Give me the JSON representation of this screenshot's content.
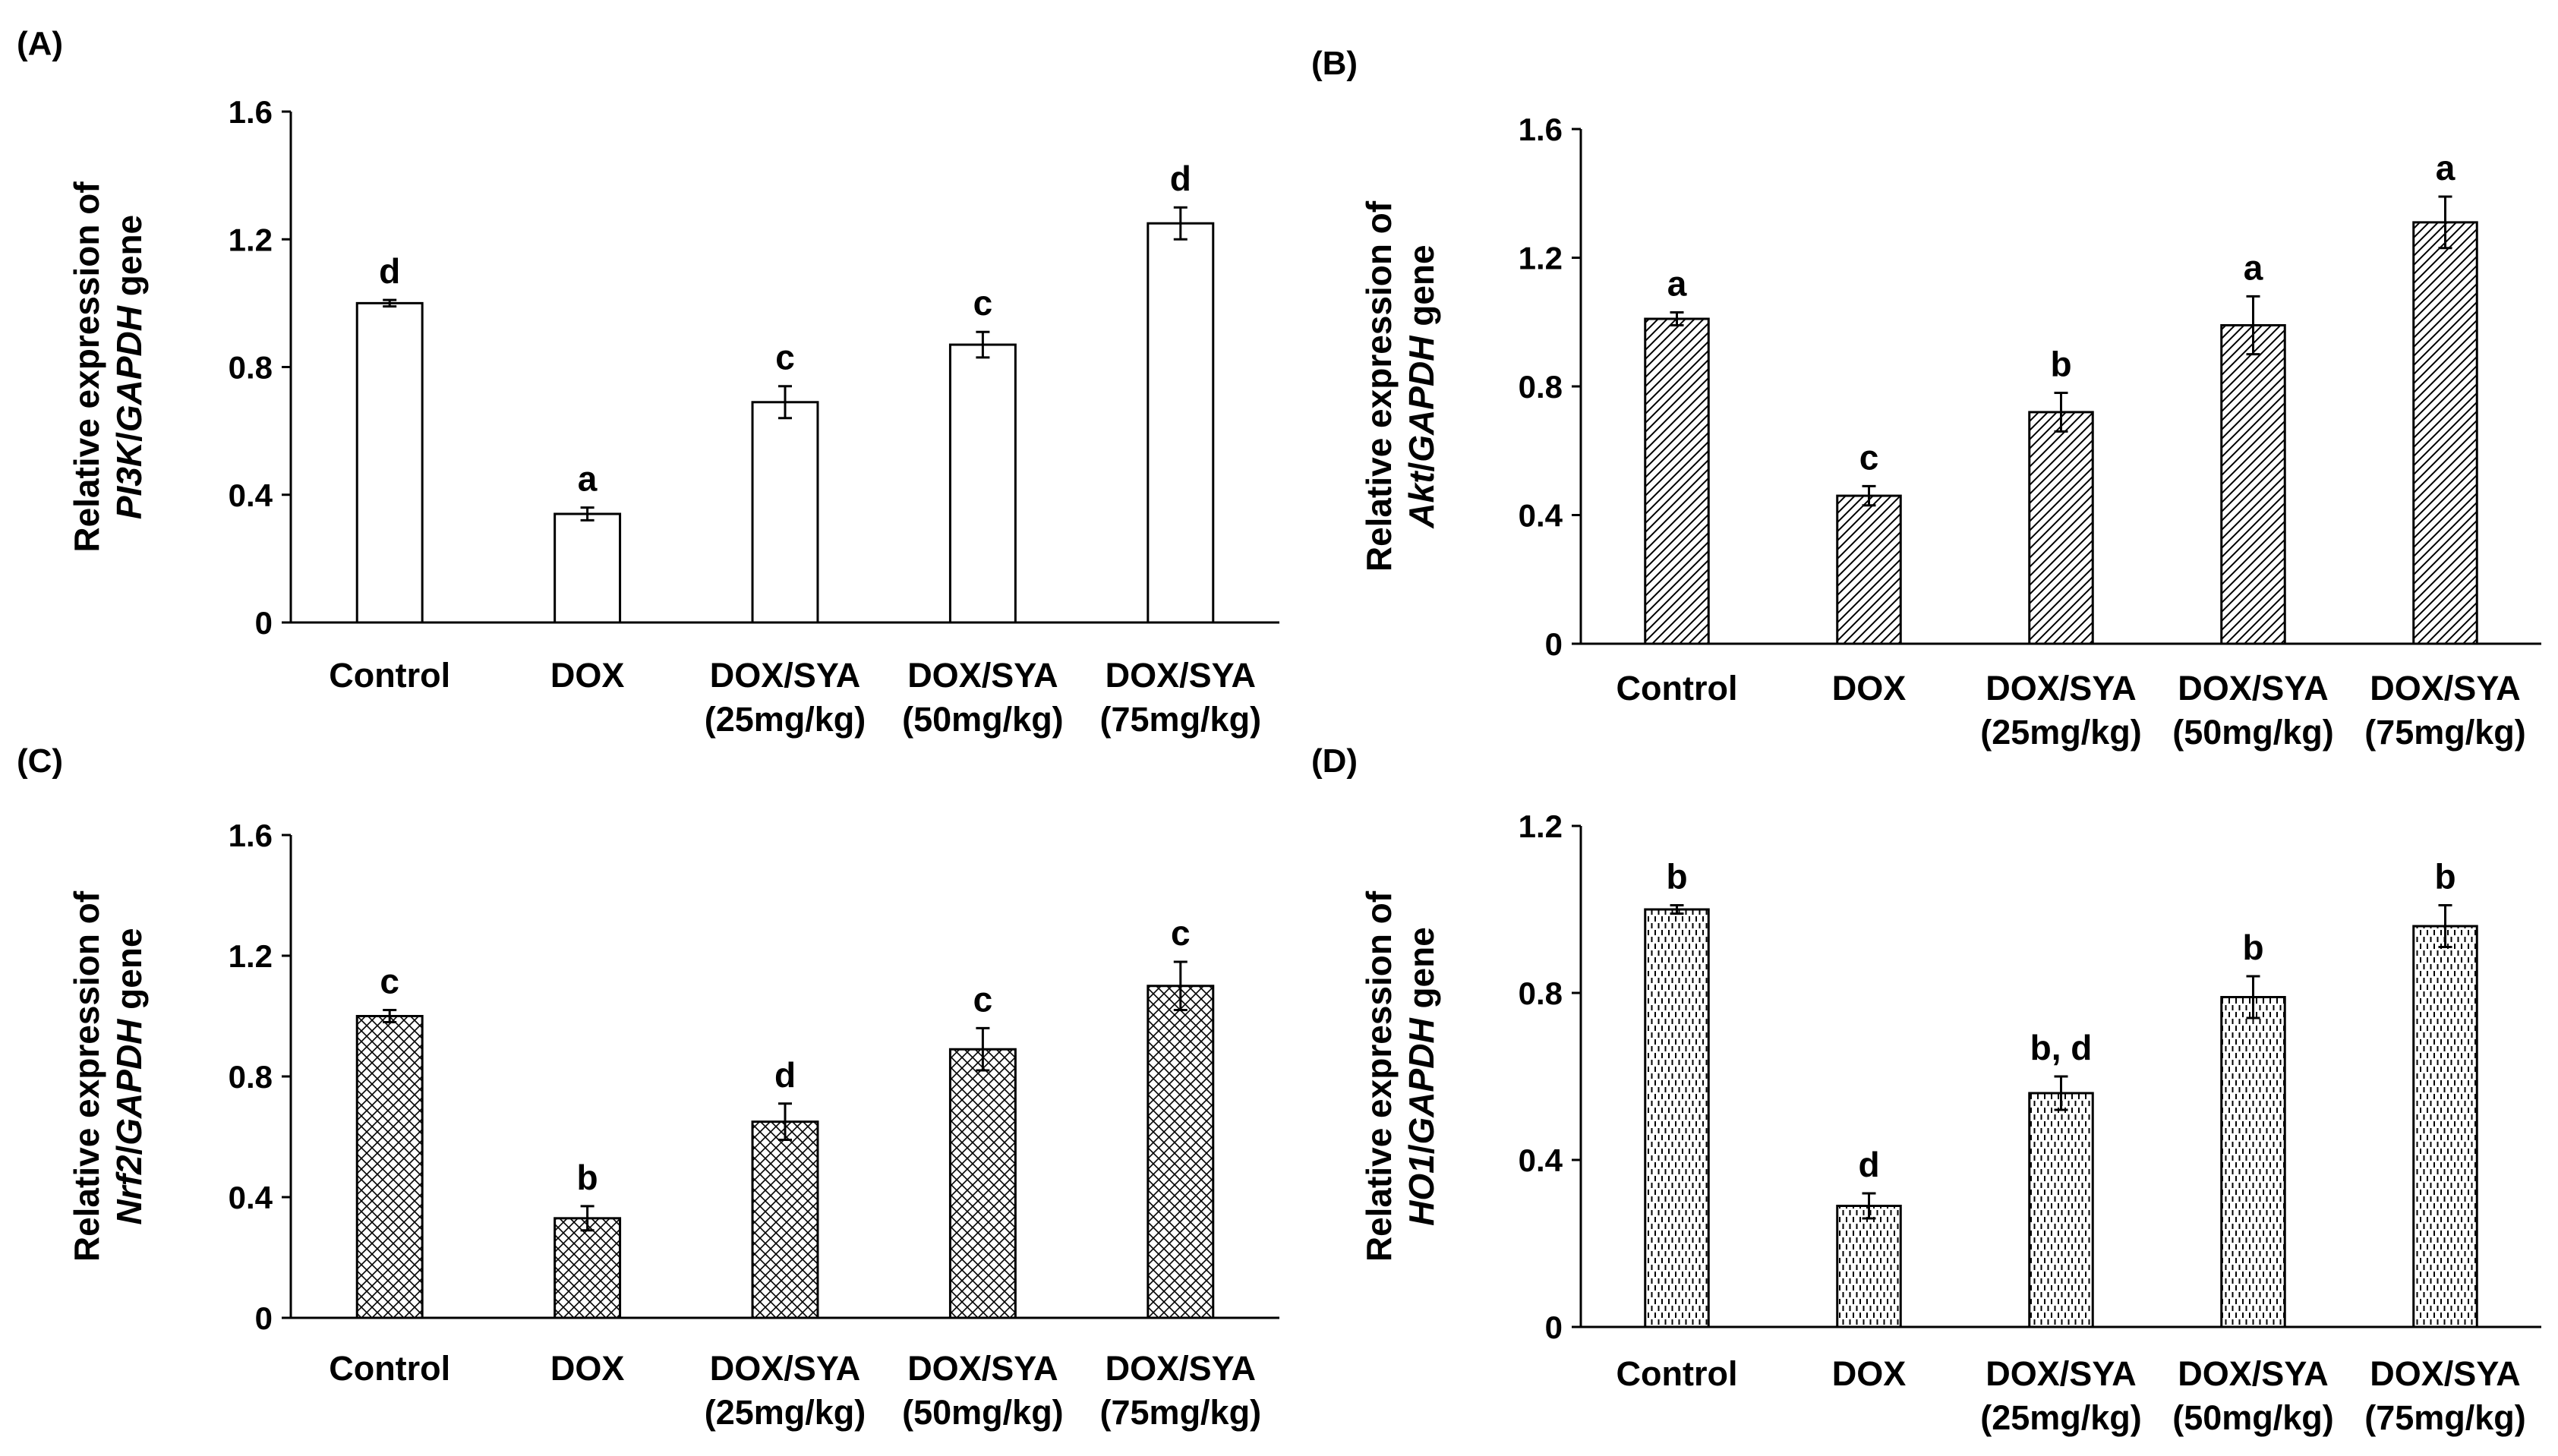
{
  "chart_data": [
    {
      "type": "bar",
      "panel_label": "(A)",
      "ylabel_line1": "Relative expression of",
      "ylabel_gene_italic": "PI3K",
      "ylabel_sep": "/",
      "ylabel_ref_italic": "GAPDH",
      "ylabel_suffix": " gene",
      "ylim": [
        0,
        1.6
      ],
      "yticks": [
        "0",
        "0.4",
        "0.8",
        "1.2",
        "1.6"
      ],
      "categories": [
        [
          "Control"
        ],
        [
          "DOX"
        ],
        [
          "DOX/SYA",
          "(25mg/kg)"
        ],
        [
          "DOX/SYA",
          "(50mg/kg)"
        ],
        [
          "DOX/SYA",
          "(75mg/kg)"
        ]
      ],
      "values": [
        1.0,
        0.34,
        0.69,
        0.87,
        1.25
      ],
      "errors": [
        0.01,
        0.02,
        0.05,
        0.04,
        0.05
      ],
      "letters": [
        "d",
        "a",
        "c",
        "c",
        "d"
      ],
      "fill_pattern": "solid-white"
    },
    {
      "type": "bar",
      "panel_label": "(B)",
      "ylabel_line1": "Relative expression of",
      "ylabel_gene_italic": "Akt",
      "ylabel_sep": "/",
      "ylabel_ref_italic": "GAPDH",
      "ylabel_suffix": " gene",
      "ylim": [
        0,
        1.6
      ],
      "yticks": [
        "0",
        "0.4",
        "0.8",
        "1.2",
        "1.6"
      ],
      "categories": [
        [
          "Control"
        ],
        [
          "DOX"
        ],
        [
          "DOX/SYA",
          "(25mg/kg)"
        ],
        [
          "DOX/SYA",
          "(50mg/kg)"
        ],
        [
          "DOX/SYA",
          "(75mg/kg)"
        ]
      ],
      "values": [
        1.01,
        0.46,
        0.72,
        0.99,
        1.31
      ],
      "errors": [
        0.02,
        0.03,
        0.06,
        0.09,
        0.08
      ],
      "letters": [
        "a",
        "c",
        "b",
        "a",
        "a"
      ],
      "fill_pattern": "diagonal-hatch"
    },
    {
      "type": "bar",
      "panel_label": "(C)",
      "ylabel_line1": "Relative expression of",
      "ylabel_gene_italic": "Nrf2",
      "ylabel_sep": "/",
      "ylabel_ref_italic": "GAPDH",
      "ylabel_suffix": " gene",
      "ylim": [
        0,
        1.6
      ],
      "yticks": [
        "0",
        "0.4",
        "0.8",
        "1.2",
        "1.6"
      ],
      "categories": [
        [
          "Control"
        ],
        [
          "DOX"
        ],
        [
          "DOX/SYA",
          "(25mg/kg)"
        ],
        [
          "DOX/SYA",
          "(50mg/kg)"
        ],
        [
          "DOX/SYA",
          "(75mg/kg)"
        ]
      ],
      "values": [
        1.0,
        0.33,
        0.65,
        0.89,
        1.1
      ],
      "errors": [
        0.02,
        0.04,
        0.06,
        0.07,
        0.08
      ],
      "letters": [
        "c",
        "b",
        "d",
        "c",
        "c"
      ],
      "fill_pattern": "cross-hatch"
    },
    {
      "type": "bar",
      "panel_label": "(D)",
      "ylabel_line1": "Relative expression of",
      "ylabel_gene_italic": "HO1",
      "ylabel_sep": "/",
      "ylabel_ref_italic": "GAPDH",
      "ylabel_suffix": " gene",
      "ylim": [
        0,
        1.2
      ],
      "yticks": [
        "0",
        "0.4",
        "0.8",
        "1.2"
      ],
      "categories": [
        [
          "Control"
        ],
        [
          "DOX"
        ],
        [
          "DOX/SYA",
          "(25mg/kg)"
        ],
        [
          "DOX/SYA",
          "(50mg/kg)"
        ],
        [
          "DOX/SYA",
          "(75mg/kg)"
        ]
      ],
      "values": [
        1.0,
        0.29,
        0.56,
        0.79,
        0.96
      ],
      "errors": [
        0.01,
        0.03,
        0.04,
        0.05,
        0.05
      ],
      "letters": [
        "b",
        "d",
        "b, d",
        "b",
        "b"
      ],
      "fill_pattern": "dashed-vertical"
    }
  ]
}
